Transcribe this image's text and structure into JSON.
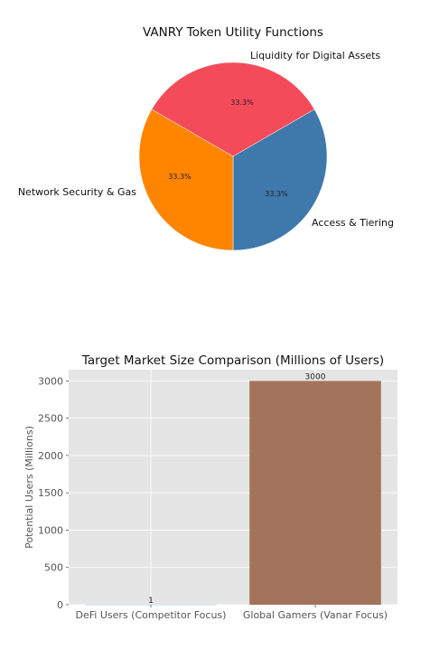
{
  "chart_data": [
    {
      "type": "pie",
      "title": "VANRY Token Utility Functions",
      "slices": [
        {
          "label": "Liquidity for Digital Assets",
          "value": 33.3,
          "pct_label": "33.3%",
          "color": "#f44b5b"
        },
        {
          "label": "Network Security & Gas",
          "value": 33.3,
          "pct_label": "33.3%",
          "color": "#3f78ab"
        },
        {
          "label": "Access & Tiering",
          "value": 33.3,
          "pct_label": "33.3%",
          "color": "#ff8500"
        }
      ]
    },
    {
      "type": "bar",
      "title": "Target Market Size Comparison (Millions of Users)",
      "categories": [
        "DeFi Users (Competitor Focus)",
        "Global Gamers (Vanar Focus)"
      ],
      "values": [
        1,
        3000
      ],
      "value_labels": [
        "1",
        "3000"
      ],
      "colors": [
        "#5b9bd5",
        "#a4735b"
      ],
      "xlabel": "",
      "ylabel": "Potential Users (Millions)",
      "ylim": [
        0,
        3150
      ],
      "yticks": [
        0,
        500,
        1000,
        1500,
        2000,
        2500,
        3000
      ],
      "grid": true,
      "background": "#e5e5e5"
    }
  ]
}
